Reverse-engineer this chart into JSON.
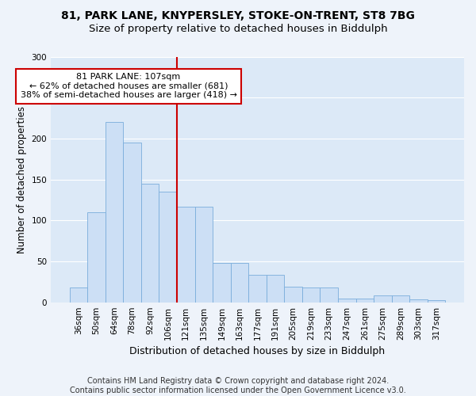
{
  "title1": "81, PARK LANE, KNYPERSLEY, STOKE-ON-TRENT, ST8 7BG",
  "title2": "Size of property relative to detached houses in Biddulph",
  "xlabel": "Distribution of detached houses by size in Biddulph",
  "ylabel": "Number of detached properties",
  "footer": "Contains HM Land Registry data © Crown copyright and database right 2024.\nContains public sector information licensed under the Open Government Licence v3.0.",
  "categories": [
    "36sqm",
    "50sqm",
    "64sqm",
    "78sqm",
    "92sqm",
    "106sqm",
    "121sqm",
    "135sqm",
    "149sqm",
    "163sqm",
    "177sqm",
    "191sqm",
    "205sqm",
    "219sqm",
    "233sqm",
    "247sqm",
    "261sqm",
    "275sqm",
    "289sqm",
    "303sqm",
    "317sqm"
  ],
  "values": [
    18,
    110,
    220,
    195,
    145,
    135,
    117,
    117,
    48,
    48,
    34,
    34,
    19,
    18,
    18,
    5,
    5,
    8,
    8,
    4,
    3
  ],
  "bar_color": "#ccdff5",
  "bar_edge_color": "#7aaddb",
  "annotation_text_line1": "81 PARK LANE: 107sqm",
  "annotation_text_line2": "← 62% of detached houses are smaller (681)",
  "annotation_text_line3": "38% of semi-detached houses are larger (418) →",
  "annotation_box_color": "#ffffff",
  "annotation_box_edge_color": "#cc0000",
  "vline_color": "#cc0000",
  "vline_x_index": 5,
  "ylim": [
    0,
    300
  ],
  "yticks": [
    0,
    50,
    100,
    150,
    200,
    250,
    300
  ],
  "fig_background_color": "#eef3fa",
  "ax_background_color": "#dce9f7",
  "grid_color": "#ffffff",
  "title1_fontsize": 10,
  "title2_fontsize": 9.5,
  "xlabel_fontsize": 9,
  "ylabel_fontsize": 8.5,
  "tick_fontsize": 7.5,
  "footer_fontsize": 7
}
